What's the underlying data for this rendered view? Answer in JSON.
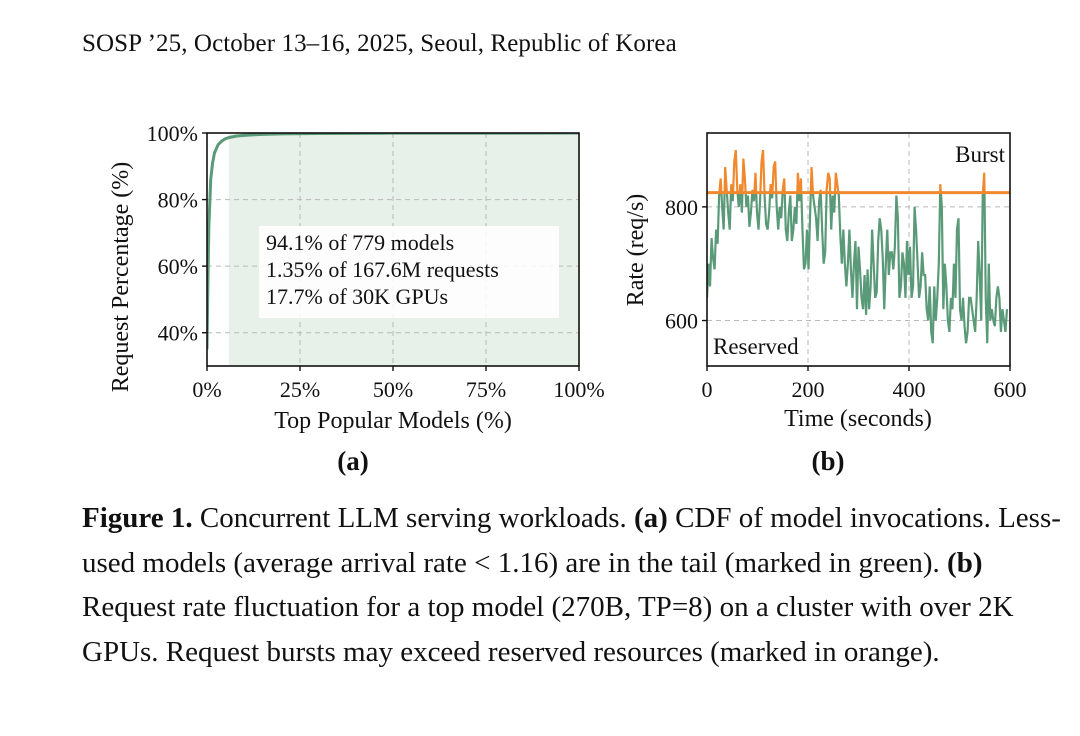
{
  "header": {
    "running_head": "SOSP ’25, October 13–16, 2025, Seoul, Republic of Korea"
  },
  "colors": {
    "green": "#5a9a78",
    "green_fill": "#e8f1e9",
    "orange": "#f0892d",
    "axis": "#111111",
    "grid": "#b8b8b8"
  },
  "chart_data": [
    {
      "type": "line",
      "panel_label": "(a)",
      "xlabel": "Top Popular Models (%)",
      "ylabel": "Request Percentage (%)",
      "xlim": [
        0,
        100
      ],
      "ylim": [
        30,
        100
      ],
      "xticks": [
        0,
        25,
        50,
        75,
        100
      ],
      "xtick_labels": [
        "0%",
        "25%",
        "50%",
        "75%",
        "100%"
      ],
      "yticks": [
        40,
        60,
        80,
        100
      ],
      "ytick_labels": [
        "40%",
        "60%",
        "80%",
        "100%"
      ],
      "grid": true,
      "shaded_region": {
        "x_from": 5.9,
        "x_to": 100
      },
      "annotations": [
        "94.1% of 779 models",
        "1.35% of 167.6M requests",
        "17.7% of 30K GPUs"
      ],
      "series": [
        {
          "x": [
            0,
            0.2,
            0.5,
            1,
            1.5,
            2,
            3,
            4,
            5,
            6,
            8,
            10,
            15,
            20,
            30,
            50,
            100
          ],
          "y": [
            35,
            52,
            72,
            86,
            91,
            94,
            96.5,
            97.6,
            98.3,
            98.65,
            99.1,
            99.3,
            99.6,
            99.75,
            99.85,
            99.95,
            100
          ]
        }
      ]
    },
    {
      "type": "line",
      "panel_label": "(b)",
      "xlabel": "Time (seconds)",
      "ylabel": "Rate (req/s)",
      "xlim": [
        0,
        600
      ],
      "ylim": [
        520,
        930
      ],
      "xticks": [
        0,
        200,
        400,
        600
      ],
      "yticks": [
        600,
        800
      ],
      "grid": true,
      "threshold": 825,
      "series_labels": {
        "above": "Burst",
        "below": "Reserved"
      },
      "series": [
        {
          "x_step": 3,
          "y": [
            640,
            700,
            660,
            745,
            710,
            690,
            760,
            735,
            820,
            850,
            800,
            760,
            870,
            830,
            790,
            760,
            840,
            810,
            880,
            900,
            830,
            800,
            840,
            790,
            885,
            850,
            800,
            820,
            765,
            790,
            830,
            810,
            860,
            790,
            760,
            810,
            880,
            900,
            820,
            770,
            760,
            790,
            840,
            815,
            870,
            880,
            800,
            760,
            800,
            780,
            830,
            850,
            760,
            740,
            790,
            820,
            740,
            760,
            800,
            770,
            860,
            810,
            850,
            760,
            690,
            700,
            760,
            690,
            780,
            870,
            820,
            800,
            780,
            740,
            810,
            830,
            760,
            700,
            720,
            830,
            860,
            850,
            760,
            820,
            790,
            860,
            840,
            820,
            750,
            700,
            760,
            700,
            660,
            700,
            760,
            690,
            640,
            700,
            740,
            620,
            730,
            690,
            640,
            620,
            680,
            610,
            690,
            620,
            660,
            760,
            700,
            640,
            650,
            740,
            780,
            760,
            710,
            620,
            700,
            760,
            680,
            720,
            720,
            690,
            730,
            820,
            780,
            640,
            660,
            720,
            700,
            640,
            740,
            680,
            730,
            640,
            660,
            800,
            760,
            700,
            640,
            660,
            720,
            680,
            680,
            620,
            600,
            660,
            580,
            560,
            660,
            600,
            640,
            700,
            840,
            800,
            620,
            700,
            660,
            600,
            580,
            640,
            620,
            700,
            640,
            760,
            780,
            620,
            600,
            640,
            590,
            560,
            580,
            640,
            640,
            620,
            600,
            580,
            640,
            740,
            680,
            600,
            820,
            860,
            640,
            560,
            700,
            600,
            620,
            600,
            590,
            640,
            660,
            640,
            580,
            620,
            600,
            580,
            620
          ]
        }
      ]
    }
  ],
  "caption": {
    "fig_label": "Figure 1.",
    "lead": " Concurrent LLM serving workloads. ",
    "a_label": "(a)",
    "a_text": " CDF of model invocations. Less-used models (average arrival rate < 1.16) are in the tail (marked in green). ",
    "b_label": "(b)",
    "b_text": " Request rate fluctuation for a top model (270B, TP=8) on a cluster with over 2K GPUs. Request bursts may exceed reserved resources (marked in orange)."
  }
}
